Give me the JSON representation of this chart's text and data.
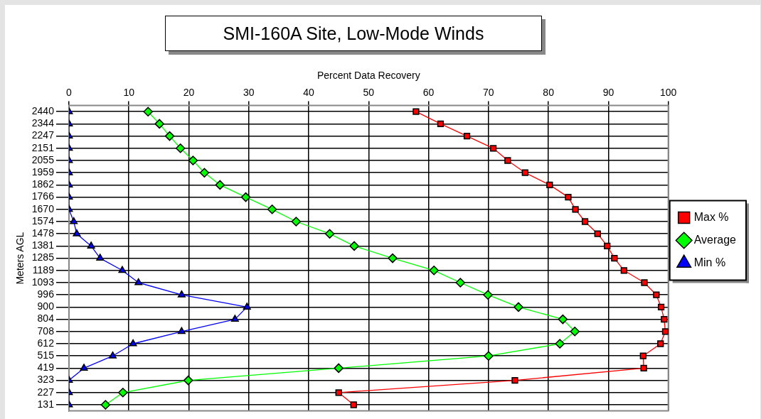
{
  "chart_data": {
    "type": "line",
    "orientation": "horizontal",
    "title": "SMI-160A Site, Low-Mode Winds",
    "xlabel": "Percent Data Recovery",
    "ylabel": "Meters AGL",
    "categories": [
      "2440",
      "2344",
      "2247",
      "2151",
      "2055",
      "1959",
      "1862",
      "1766",
      "1670",
      "1574",
      "1478",
      "1381",
      "1285",
      "1189",
      "1093",
      "996",
      "900",
      "804",
      "708",
      "612",
      "515",
      "419",
      "323",
      "227",
      "131"
    ],
    "xlim": [
      0,
      100
    ],
    "xticks": [
      0,
      10,
      20,
      30,
      40,
      50,
      60,
      70,
      80,
      90,
      100
    ],
    "grid": true,
    "legend": "right",
    "line_style": "solid",
    "series": [
      {
        "name": "Max %",
        "color": "#ff0000",
        "marker": "square",
        "values": [
          57.9,
          62.0,
          66.4,
          70.8,
          73.2,
          76.1,
          80.2,
          83.3,
          84.5,
          86.1,
          88.2,
          89.8,
          91.0,
          92.6,
          96.0,
          98.0,
          98.8,
          99.3,
          99.5,
          98.7,
          95.8,
          95.9,
          74.4,
          45.0,
          47.5
        ]
      },
      {
        "name": "Average",
        "color": "#00ff00",
        "marker": "diamond",
        "values": [
          13.2,
          15.1,
          16.8,
          18.6,
          20.7,
          22.6,
          25.2,
          29.5,
          33.9,
          37.9,
          43.5,
          47.6,
          54.0,
          60.9,
          65.3,
          69.9,
          75.0,
          82.4,
          84.4,
          81.9,
          70.0,
          45.0,
          19.9,
          9.0,
          6.1
        ]
      },
      {
        "name": "Min %",
        "color": "#0000ff",
        "marker": "triangle",
        "values": [
          0,
          0,
          0,
          0,
          0,
          0,
          0,
          0,
          0,
          0.8,
          1.3,
          3.7,
          5.2,
          8.9,
          11.6,
          18.8,
          29.7,
          27.7,
          18.8,
          10.7,
          7.3,
          2.5,
          0,
          0,
          0
        ]
      }
    ]
  }
}
